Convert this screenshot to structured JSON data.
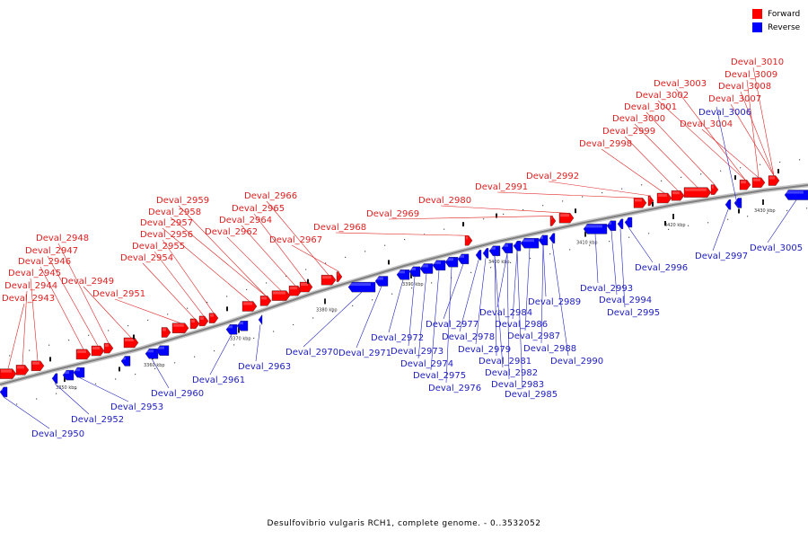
{
  "caption": "Desulfovibrio vulgaris RCH1, complete genome. - 0..3532052",
  "legend": [
    {
      "label": "Forward",
      "color": "#ff0000"
    },
    {
      "label": "Reverse",
      "color": "#0000ff"
    }
  ],
  "colors": {
    "forward": "#ff0000",
    "reverse": "#0000ff",
    "label_forward": "#e02020",
    "label_reverse": "#2020c0",
    "backbone": "#808080"
  },
  "scale": {
    "ticks": [
      "3350 kbp",
      "3360 kbp",
      "3370 kbp",
      "3380 kbp",
      "3390 kbp",
      "3400 kbp",
      "3410 kbp",
      "3420 kbp",
      "3430 kbp"
    ]
  },
  "genes_forward": [
    "Deval_2943",
    "Deval_2944",
    "Deval_2945",
    "Deval_2946",
    "Deval_2947",
    "Deval_2948",
    "Deval_2949",
    "Deval_2951",
    "Deval_2954",
    "Deval_2955",
    "Deval_2956",
    "Deval_2957",
    "Deval_2958",
    "Deval_2959",
    "Deval_2962",
    "Deval_2964",
    "Deval_2965",
    "Deval_2966",
    "Deval_2967",
    "Deval_2968",
    "Deval_2969",
    "Deval_2980",
    "Deval_2991",
    "Deval_2992",
    "Deval_2998",
    "Deval_2999",
    "Deval_3000",
    "Deval_3001",
    "Deval_3002",
    "Deval_3003",
    "Deval_3004",
    "Deval_3007",
    "Deval_3008",
    "Deval_3009",
    "Deval_3010"
  ],
  "genes_reverse": [
    "Deval_2950",
    "Deval_2952",
    "Deval_2953",
    "Deval_2960",
    "Deval_2961",
    "Deval_2963",
    "Deval_2970",
    "Deval_2971",
    "Deval_2972",
    "Deval_2973",
    "Deval_2974",
    "Deval_2975",
    "Deval_2976",
    "Deval_2977",
    "Deval_2978",
    "Deval_2979",
    "Deval_2981",
    "Deval_2982",
    "Deval_2983",
    "Deval_2984",
    "Deval_2985",
    "Deval_2986",
    "Deval_2987",
    "Deval_2988",
    "Deval_2989",
    "Deval_2990",
    "Deval_2993",
    "Deval_2994",
    "Deval_2995",
    "Deval_2996",
    "Deval_2997",
    "Deval_3005",
    "Deval_3006"
  ]
}
